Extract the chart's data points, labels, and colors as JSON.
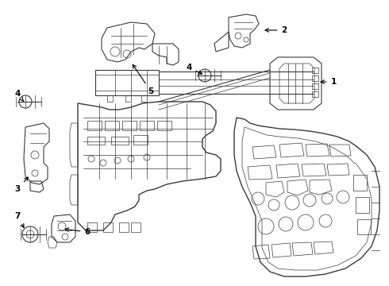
{
  "background_color": "#ffffff",
  "line_color": "#3a3a3a",
  "label_color": "#000000",
  "figsize": [
    4.9,
    3.6
  ],
  "dpi": 100,
  "arrow_color": "#000000",
  "label_fontsize": 7.5,
  "lw_thin": 0.5,
  "lw_med": 0.8,
  "lw_thick": 1.0
}
